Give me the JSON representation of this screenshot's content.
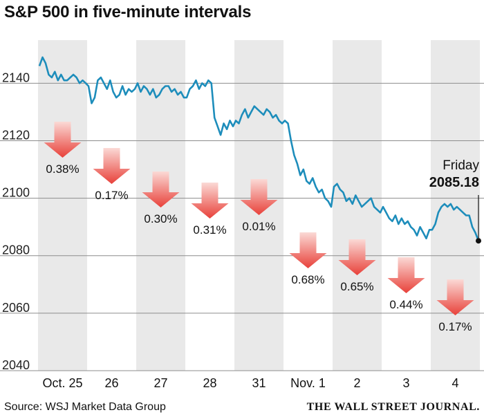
{
  "chart_data": {
    "type": "line",
    "title": "S&P 500 in five-minute intervals",
    "ylim": [
      2040,
      2155
    ],
    "yticks": [
      2040,
      2060,
      2080,
      2100,
      2120,
      2140
    ],
    "grid": true,
    "days": [
      {
        "label": "Oct. 25",
        "change": "0.38%",
        "shaded": true,
        "price": [
          2146,
          2149,
          2147,
          2143,
          2142,
          2144,
          2141,
          2143,
          2141,
          2141,
          2142,
          2143,
          2142,
          2140,
          2141,
          2140
        ]
      },
      {
        "label": "26",
        "change": "0.17%",
        "shaded": false,
        "price": [
          2139,
          2133,
          2135,
          2141,
          2142,
          2140,
          2138,
          2141,
          2137,
          2135,
          2136,
          2139,
          2136,
          2138,
          2137,
          2138
        ]
      },
      {
        "label": "27",
        "change": "0.30%",
        "shaded": true,
        "price": [
          2140,
          2137,
          2139,
          2138,
          2136,
          2138,
          2135,
          2136,
          2138,
          2139,
          2139,
          2137,
          2138,
          2136,
          2137,
          2135
        ]
      },
      {
        "label": "28",
        "change": "0.31%",
        "shaded": false,
        "price": [
          2135,
          2138,
          2139,
          2141,
          2138,
          2140,
          2139,
          2141,
          2140,
          2128,
          2125,
          2122,
          2126,
          2124,
          2127,
          2125
        ]
      },
      {
        "label": "31",
        "change": "0.01%",
        "shaded": true,
        "price": [
          2127,
          2126,
          2129,
          2131,
          2128,
          2130,
          2132,
          2131,
          2130,
          2129,
          2131,
          2130,
          2128,
          2129,
          2127,
          2126
        ]
      },
      {
        "label": "Nov. 1",
        "change": "0.68%",
        "shaded": false,
        "price": [
          2127,
          2126,
          2120,
          2115,
          2112,
          2108,
          2110,
          2106,
          2105,
          2107,
          2104,
          2102,
          2103,
          2100,
          2099,
          2097
        ]
      },
      {
        "label": "2",
        "change": "0.65%",
        "shaded": true,
        "price": [
          2104,
          2105,
          2103,
          2102,
          2099,
          2100,
          2098,
          2101,
          2099,
          2097,
          2098,
          2099,
          2100,
          2097,
          2096,
          2095
        ]
      },
      {
        "label": "3",
        "change": "0.44%",
        "shaded": false,
        "price": [
          2097,
          2095,
          2093,
          2092,
          2094,
          2091,
          2093,
          2091,
          2092,
          2090,
          2089,
          2087,
          2090,
          2088,
          2086,
          2089
        ]
      },
      {
        "label": "4",
        "change": "0.17%",
        "shaded": true,
        "price": [
          2089,
          2091,
          2095,
          2097,
          2098,
          2097,
          2098,
          2096,
          2097,
          2096,
          2095,
          2094,
          2094,
          2090,
          2088,
          2085.18
        ]
      }
    ],
    "annotation": {
      "label": "Friday",
      "value": "2085.18"
    }
  },
  "footer": {
    "source": "Source: WSJ Market Data Group",
    "brand": "THE WALL STREET JOURNAL."
  }
}
